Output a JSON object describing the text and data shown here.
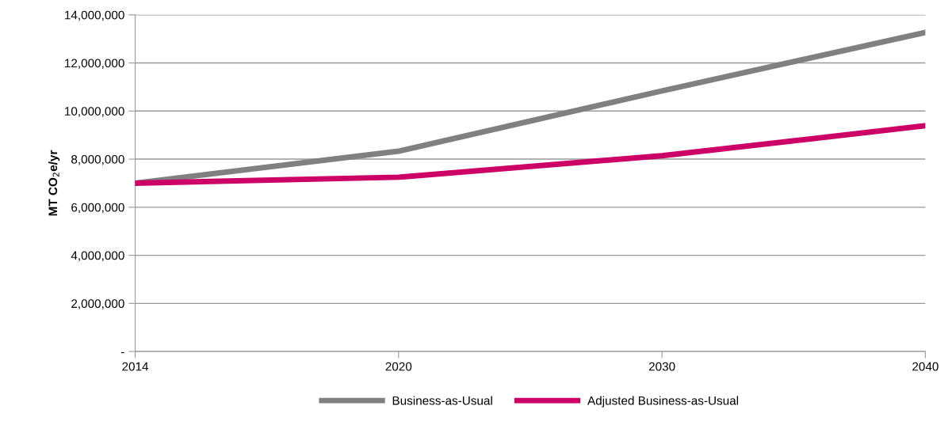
{
  "chart_data": {
    "type": "line",
    "ylabel": "MT CO$_{2}$e/yr",
    "categories": [
      "2014",
      "2020",
      "2030",
      "2040"
    ],
    "series": [
      {
        "name": "Business-as-Usual",
        "color": "#808080",
        "values": [
          7000000,
          8330000,
          10840000,
          13270000
        ]
      },
      {
        "name": "Adjusted Business-as-Usual",
        "color": "#cc0066",
        "values": [
          7000000,
          7250000,
          8140000,
          9390000
        ]
      }
    ],
    "ylim": [
      0,
      14000000
    ],
    "yticks": [
      {
        "value": 0,
        "label": "-"
      },
      {
        "value": 2000000,
        "label": "2,000,000"
      },
      {
        "value": 4000000,
        "label": "4,000,000"
      },
      {
        "value": 6000000,
        "label": "6,000,000"
      },
      {
        "value": 8000000,
        "label": "8,000,000"
      },
      {
        "value": 10000000,
        "label": "10,000,000"
      },
      {
        "value": 12000000,
        "label": "12,000,000"
      },
      {
        "value": 14000000,
        "label": "14,000,000"
      }
    ],
    "grid": "y",
    "legend": "bottom",
    "marker": "none",
    "line_style": "solid"
  }
}
